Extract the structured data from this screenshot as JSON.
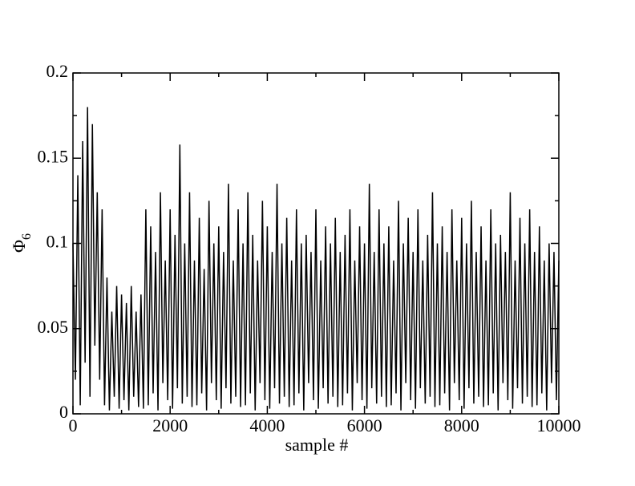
{
  "chart_data": {
    "type": "line",
    "x_label": "sample #",
    "y_label": {
      "symbol": "Φ",
      "subscript": "6"
    },
    "xlim": [
      0,
      10000
    ],
    "xticks": [
      0,
      2000,
      4000,
      6000,
      8000,
      10000
    ],
    "xminor_ticks": [
      1000,
      3000,
      5000,
      7000,
      9000
    ],
    "ylim": [
      0,
      0.2
    ],
    "yticks": [
      0,
      0.05,
      0.1,
      0.15,
      0.2
    ],
    "yminor_ticks": [
      0.025,
      0.075,
      0.125,
      0.175
    ],
    "color": "#000000",
    "x": [
      0,
      50,
      100,
      150,
      200,
      250,
      300,
      350,
      400,
      450,
      500,
      550,
      600,
      650,
      700,
      750,
      800,
      850,
      900,
      950,
      1000,
      1050,
      1100,
      1150,
      1200,
      1250,
      1300,
      1350,
      1400,
      1450,
      1500,
      1550,
      1600,
      1650,
      1700,
      1750,
      1800,
      1850,
      1900,
      1950,
      2000,
      2050,
      2100,
      2150,
      2200,
      2250,
      2300,
      2350,
      2400,
      2450,
      2500,
      2550,
      2600,
      2650,
      2700,
      2750,
      2800,
      2850,
      2900,
      2950,
      3000,
      3050,
      3100,
      3150,
      3200,
      3250,
      3300,
      3350,
      3400,
      3450,
      3500,
      3550,
      3600,
      3650,
      3700,
      3750,
      3800,
      3850,
      3900,
      3950,
      4000,
      4050,
      4100,
      4150,
      4200,
      4250,
      4300,
      4350,
      4400,
      4450,
      4500,
      4550,
      4600,
      4650,
      4700,
      4750,
      4800,
      4850,
      4900,
      4950,
      5000,
      5050,
      5100,
      5150,
      5200,
      5250,
      5300,
      5350,
      5400,
      5450,
      5500,
      5550,
      5600,
      5650,
      5700,
      5750,
      5800,
      5850,
      5900,
      5950,
      6000,
      6050,
      6100,
      6150,
      6200,
      6250,
      6300,
      6350,
      6400,
      6450,
      6500,
      6550,
      6600,
      6650,
      6700,
      6750,
      6800,
      6850,
      6900,
      6950,
      7000,
      7050,
      7100,
      7150,
      7200,
      7250,
      7300,
      7350,
      7400,
      7450,
      7500,
      7550,
      7600,
      7650,
      7700,
      7750,
      7800,
      7850,
      7900,
      7950,
      8000,
      8050,
      8100,
      8150,
      8200,
      8250,
      8300,
      8350,
      8400,
      8450,
      8500,
      8550,
      8600,
      8650,
      8700,
      8750,
      8800,
      8850,
      8900,
      8950,
      9000,
      9050,
      9100,
      9150,
      9200,
      9250,
      9300,
      9350,
      9400,
      9450,
      9500,
      9550,
      9600,
      9650,
      9700,
      9750,
      9800,
      9850,
      9900,
      9950,
      10000
    ],
    "values": [
      0.1,
      0.02,
      0.14,
      0.005,
      0.16,
      0.03,
      0.18,
      0.01,
      0.17,
      0.04,
      0.13,
      0.02,
      0.12,
      0.005,
      0.08,
      0.002,
      0.06,
      0.01,
      0.075,
      0.003,
      0.07,
      0.008,
      0.065,
      0.002,
      0.075,
      0.01,
      0.06,
      0.004,
      0.07,
      0.003,
      0.12,
      0.005,
      0.11,
      0.012,
      0.095,
      0.002,
      0.13,
      0.018,
      0.09,
      0.008,
      0.12,
      0.003,
      0.105,
      0.015,
      0.158,
      0.006,
      0.1,
      0.01,
      0.13,
      0.004,
      0.09,
      0.005,
      0.115,
      0.012,
      0.085,
      0.002,
      0.125,
      0.018,
      0.1,
      0.008,
      0.11,
      0.003,
      0.095,
      0.015,
      0.135,
      0.006,
      0.09,
      0.01,
      0.12,
      0.004,
      0.1,
      0.005,
      0.13,
      0.012,
      0.105,
      0.002,
      0.09,
      0.018,
      0.125,
      0.008,
      0.11,
      0.003,
      0.095,
      0.015,
      0.135,
      0.006,
      0.1,
      0.01,
      0.115,
      0.004,
      0.09,
      0.005,
      0.12,
      0.012,
      0.1,
      0.002,
      0.105,
      0.018,
      0.095,
      0.008,
      0.12,
      0.003,
      0.09,
      0.015,
      0.11,
      0.006,
      0.1,
      0.01,
      0.115,
      0.004,
      0.095,
      0.005,
      0.105,
      0.012,
      0.12,
      0.002,
      0.09,
      0.018,
      0.11,
      0.008,
      0.1,
      0.003,
      0.135,
      0.015,
      0.095,
      0.006,
      0.12,
      0.01,
      0.1,
      0.004,
      0.11,
      0.005,
      0.09,
      0.012,
      0.125,
      0.002,
      0.1,
      0.018,
      0.115,
      0.008,
      0.095,
      0.003,
      0.12,
      0.015,
      0.09,
      0.006,
      0.105,
      0.01,
      0.13,
      0.004,
      0.1,
      0.005,
      0.11,
      0.012,
      0.095,
      0.002,
      0.12,
      0.018,
      0.09,
      0.008,
      0.115,
      0.003,
      0.1,
      0.015,
      0.125,
      0.006,
      0.095,
      0.01,
      0.11,
      0.004,
      0.09,
      0.005,
      0.12,
      0.012,
      0.1,
      0.002,
      0.105,
      0.018,
      0.095,
      0.008,
      0.13,
      0.003,
      0.09,
      0.015,
      0.115,
      0.006,
      0.1,
      0.01,
      0.12,
      0.004,
      0.095,
      0.005,
      0.11,
      0.012,
      0.09,
      0.002,
      0.1,
      0.018,
      0.095,
      0.008,
      0.09
    ]
  }
}
